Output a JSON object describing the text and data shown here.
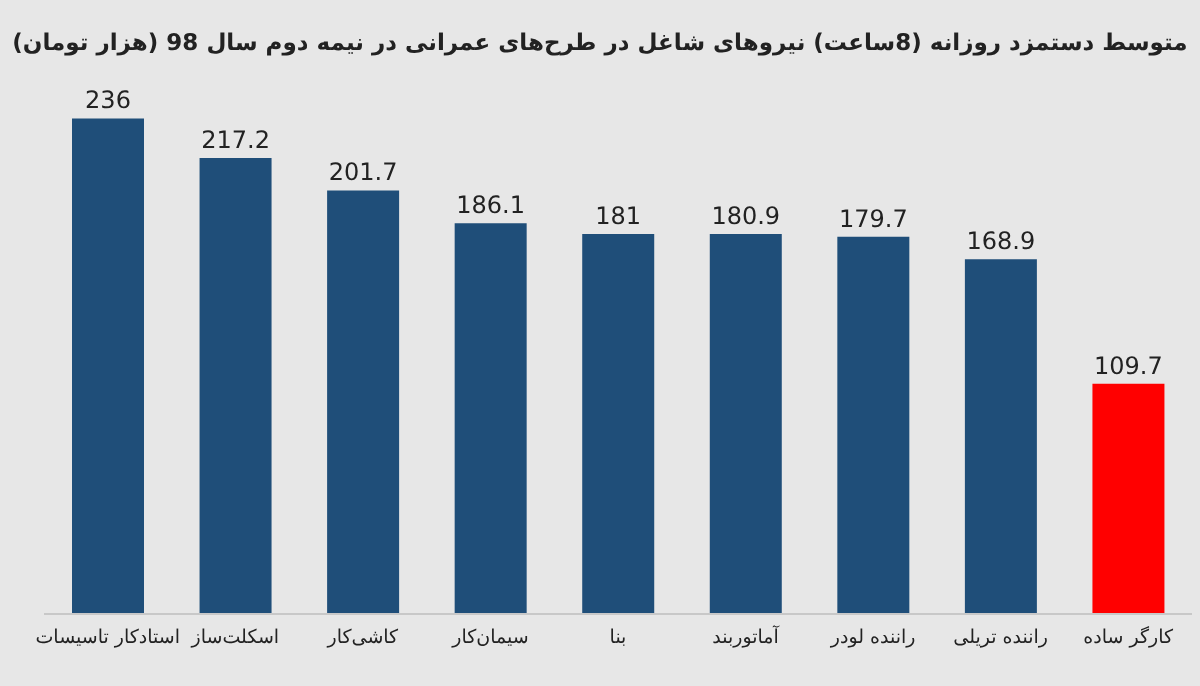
{
  "chart_data": {
    "type": "bar",
    "title": "متوسط دستمزد روزانه (8ساعت) نیروهای شاغل در طرح‌های عمرانی در نیمه دوم سال 98 (هزار تومان)",
    "categories": [
      "استادکار تاسیسات",
      "اسکلت‌ساز",
      "کاشی‌کار",
      "سیمان‌کار",
      "بنا",
      "آماتوربند",
      "راننده لودر",
      "راننده تریلی",
      "کارگر ساده"
    ],
    "values": [
      236,
      217.2,
      201.7,
      186.1,
      181,
      180.9,
      179.7,
      168.9,
      109.7
    ],
    "colors": [
      "#1f4e79",
      "#1f4e79",
      "#1f4e79",
      "#1f4e79",
      "#1f4e79",
      "#1f4e79",
      "#1f4e79",
      "#1f4e79",
      "#ff0000"
    ],
    "tick_labels": "x",
    "data_labels": true
  }
}
